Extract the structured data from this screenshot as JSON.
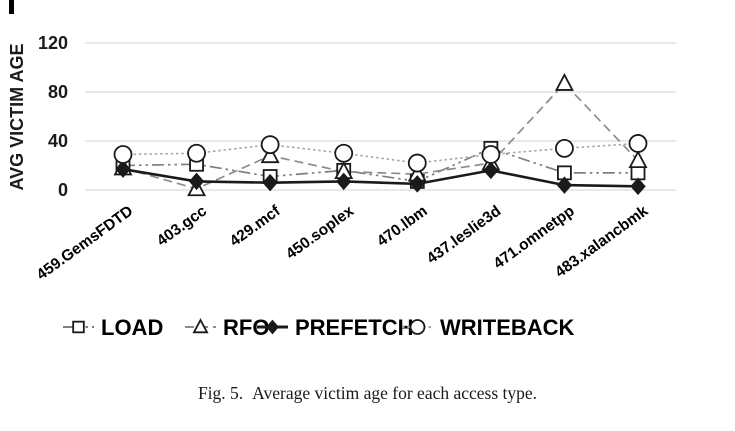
{
  "chart_data": {
    "type": "line",
    "title": "",
    "xlabel": "",
    "ylabel": "AVG VICTIM AGE",
    "ylim": [
      0,
      120
    ],
    "yticks": [
      0,
      40,
      80,
      120
    ],
    "grid": true,
    "gridline_color": "#d9d9d9",
    "legend_position": "bottom",
    "categories": [
      "459.GemsFDTD",
      "403.gcc",
      "429.mcf",
      "450.soplex",
      "470.lbm",
      "437.leslie3d",
      "471.omnetpp",
      "483.xalancbmk"
    ],
    "series": [
      {
        "name": "LOAD",
        "marker": "square",
        "line": "dash-dot-dot",
        "color": "#7f7f7f",
        "marker_color": "#1a1a1a",
        "values": [
          20,
          21,
          11,
          16,
          7,
          34,
          14,
          14
        ]
      },
      {
        "name": "RFO",
        "marker": "triangle",
        "line": "dashed",
        "color": "#8c8c8c",
        "marker_color": "#1a1a1a",
        "values": [
          18,
          1,
          28,
          15,
          13,
          22,
          87,
          24
        ]
      },
      {
        "name": "PREFETCH",
        "marker": "diamond",
        "line": "solid",
        "color": "#1a1a1a",
        "marker_color": "#1a1a1a",
        "values": [
          17,
          7,
          6,
          7,
          5,
          16,
          4,
          3
        ]
      },
      {
        "name": "WRITEBACK",
        "marker": "circle",
        "line": "dotted",
        "color": "#a6a6a6",
        "marker_color": "#1a1a1a",
        "values": [
          29,
          30,
          37,
          30,
          22,
          29,
          34,
          38
        ]
      }
    ]
  },
  "caption": {
    "fig_label": "Fig. 5.",
    "text": "Average victim age for each access type."
  }
}
